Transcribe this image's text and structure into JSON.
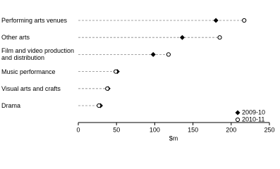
{
  "chart_data": {
    "type": "dot",
    "categories": [
      "Performing arts venues",
      "Other arts",
      "Film and video production\nand distribution",
      "Music performance",
      "Visual arts and crafts",
      "Drama"
    ],
    "series": [
      {
        "name": "2009-10",
        "color": "#000000",
        "marker": "diamond",
        "values": [
          180,
          136,
          98,
          51,
          39,
          29
        ]
      },
      {
        "name": "2010-11",
        "color": "#000000",
        "marker": "circle-open",
        "values": [
          217,
          185,
          118,
          49,
          38,
          27
        ]
      }
    ],
    "xlim": [
      0,
      250
    ],
    "xticks": [
      0,
      50,
      100,
      150,
      200,
      250
    ],
    "xlabel": "$m",
    "legend": "lower right"
  }
}
